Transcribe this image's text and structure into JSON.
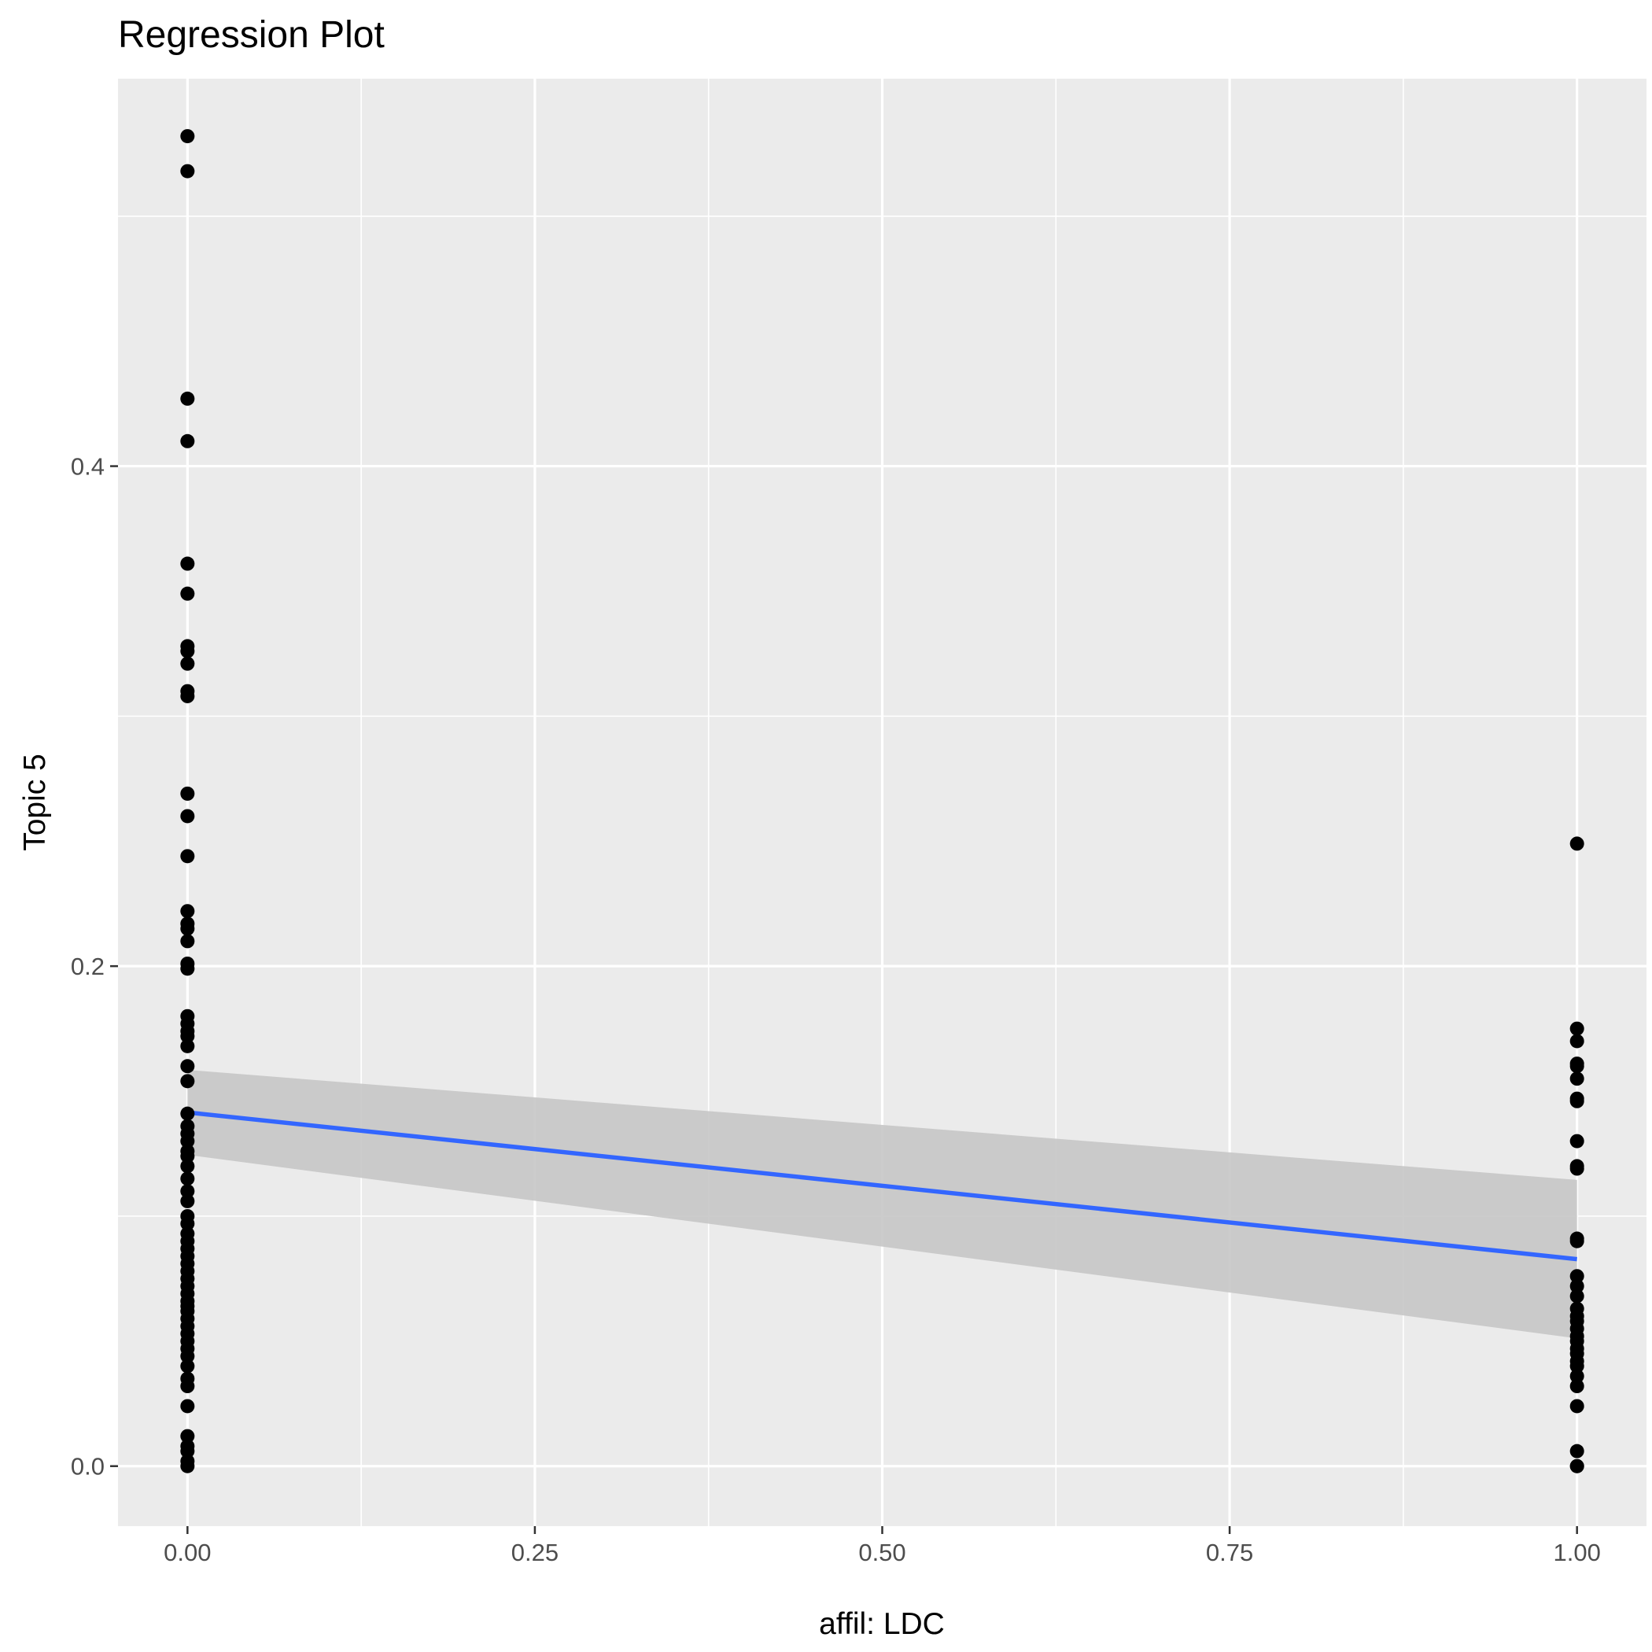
{
  "chart_data": {
    "type": "scatter",
    "title": "Regression Plot",
    "xlabel": "affil: LDC",
    "ylabel": "Topic 5",
    "xlim": [
      -0.05,
      1.05
    ],
    "ylim": [
      -0.024,
      0.555
    ],
    "x_ticks": [
      {
        "value": 0.0,
        "label": "0.00"
      },
      {
        "value": 0.25,
        "label": "0.25"
      },
      {
        "value": 0.5,
        "label": "0.50"
      },
      {
        "value": 0.75,
        "label": "0.75"
      },
      {
        "value": 1.0,
        "label": "1.00"
      }
    ],
    "y_ticks": [
      {
        "value": 0.0,
        "label": "0.0"
      },
      {
        "value": 0.2,
        "label": "0.2"
      },
      {
        "value": 0.4,
        "label": "0.4"
      }
    ],
    "grid": true,
    "points": {
      "x0": [
        0.532,
        0.518,
        0.427,
        0.41,
        0.361,
        0.349,
        0.328,
        0.326,
        0.321,
        0.31,
        0.308,
        0.269,
        0.26,
        0.244,
        0.222,
        0.217,
        0.215,
        0.21,
        0.201,
        0.199,
        0.18,
        0.177,
        0.174,
        0.172,
        0.168,
        0.16,
        0.154,
        0.141,
        0.136,
        0.133,
        0.13,
        0.126,
        0.124,
        0.12,
        0.115,
        0.11,
        0.106,
        0.1,
        0.097,
        0.093,
        0.09,
        0.087,
        0.084,
        0.081,
        0.078,
        0.075,
        0.072,
        0.069,
        0.066,
        0.064,
        0.062,
        0.059,
        0.056,
        0.053,
        0.05,
        0.047,
        0.044,
        0.04,
        0.035,
        0.032,
        0.024,
        0.012,
        0.008,
        0.006,
        0.002,
        0.0
      ],
      "x1": [
        0.249,
        0.175,
        0.17,
        0.161,
        0.16,
        0.155,
        0.147,
        0.146,
        0.13,
        0.12,
        0.119,
        0.091,
        0.09,
        0.076,
        0.072,
        0.068,
        0.063,
        0.06,
        0.058,
        0.055,
        0.052,
        0.05,
        0.047,
        0.045,
        0.042,
        0.04,
        0.036,
        0.032,
        0.024,
        0.006,
        0.0,
        0.0
      ]
    },
    "regression": {
      "x": [
        0,
        1
      ],
      "y": [
        0.1415,
        0.0828
      ]
    },
    "confidence_band": {
      "x": [
        0,
        1
      ],
      "upper": [
        0.1585,
        0.1145
      ],
      "lower": [
        0.1245,
        0.0511
      ]
    },
    "colors": {
      "panel": "#ebebeb",
      "grid": "#ffffff",
      "points": "#000000",
      "line": "#3366ff",
      "band": "#c6c6c6"
    }
  }
}
